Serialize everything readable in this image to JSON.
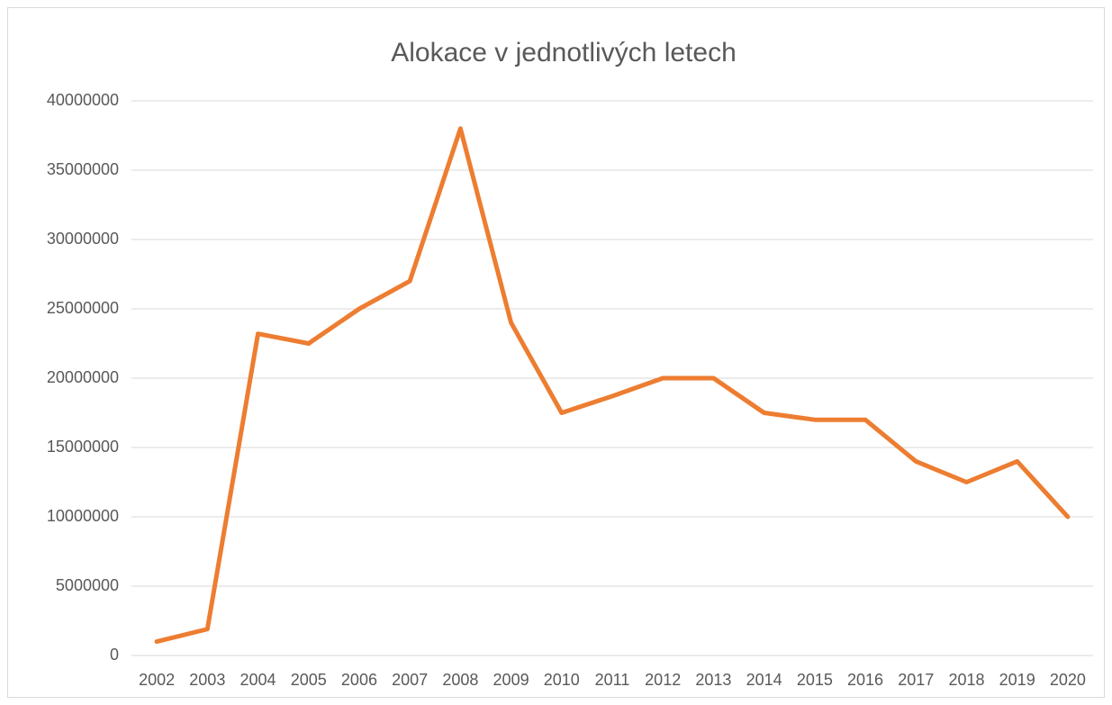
{
  "chart_data": {
    "type": "line",
    "title": "Alokace v jednotlivých letech",
    "categories": [
      "2002",
      "2003",
      "2004",
      "2005",
      "2006",
      "2007",
      "2008",
      "2009",
      "2010",
      "2011",
      "2012",
      "2013",
      "2014",
      "2015",
      "2016",
      "2017",
      "2018",
      "2019",
      "2020"
    ],
    "series": [
      {
        "color": "#ED7D31",
        "values": [
          1000000,
          1900000,
          23200000,
          22500000,
          25000000,
          27000000,
          38000000,
          24000000,
          17500000,
          18700000,
          20000000,
          20000000,
          17500000,
          17000000,
          17000000,
          14000000,
          12500000,
          14000000,
          10000000
        ]
      }
    ],
    "ylim": [
      0,
      40000000
    ],
    "yticks": [
      0,
      5000000,
      10000000,
      15000000,
      20000000,
      25000000,
      30000000,
      35000000,
      40000000
    ],
    "grid": true
  }
}
